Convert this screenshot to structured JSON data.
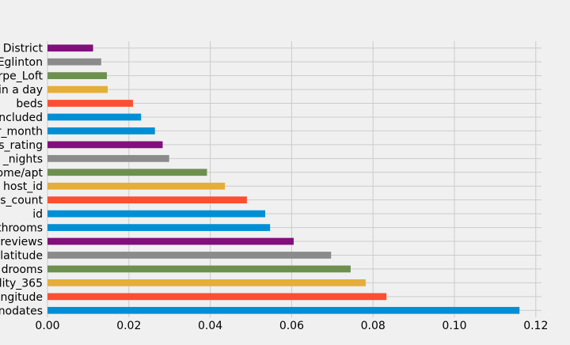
{
  "chart_data": {
    "type": "bar",
    "orientation": "horizontal",
    "title": "",
    "xlabel": "",
    "ylabel": "",
    "xlim": [
      0,
      0.122
    ],
    "grid": true,
    "legend": "none",
    "x_ticks": [
      "0.00",
      "0.02",
      "0.04",
      "0.06",
      "0.08",
      "0.10",
      "0.12"
    ],
    "tick_values": [
      0.0,
      0.02,
      0.04,
      0.06,
      0.08,
      0.1,
      0.12
    ],
    "categories": [
      "nodates",
      "ngitude",
      "lity_365",
      "drooms",
      "latitude",
      "reviews",
      "throoms",
      "id",
      "s_count",
      "host_id",
      "ome/apt",
      "_nights",
      "s_rating",
      "r_month",
      "ncluded",
      "beds",
      "in a day",
      "rpe_Loft",
      "Eglinton",
      "District"
    ],
    "values": [
      0.116,
      0.0833,
      0.0782,
      0.0745,
      0.0697,
      0.0605,
      0.0547,
      0.0535,
      0.049,
      0.0436,
      0.0392,
      0.0299,
      0.0283,
      0.0264,
      0.023,
      0.021,
      0.0148,
      0.0146,
      0.0132,
      0.0112
    ],
    "colors": [
      "#008fd5",
      "#fc4f30",
      "#e5ae38",
      "#6d904f",
      "#8b8b8b",
      "#810f7c",
      "#008fd5",
      "#008fd5",
      "#fc4f30",
      "#e5ae38",
      "#6d904f",
      "#8b8b8b",
      "#810f7c",
      "#008fd5",
      "#008fd5",
      "#fc4f30",
      "#e5ae38",
      "#6d904f",
      "#8b8b8b",
      "#810f7c"
    ],
    "background_color": "#f0f0f0",
    "grid_color": "#cbcbcb"
  }
}
